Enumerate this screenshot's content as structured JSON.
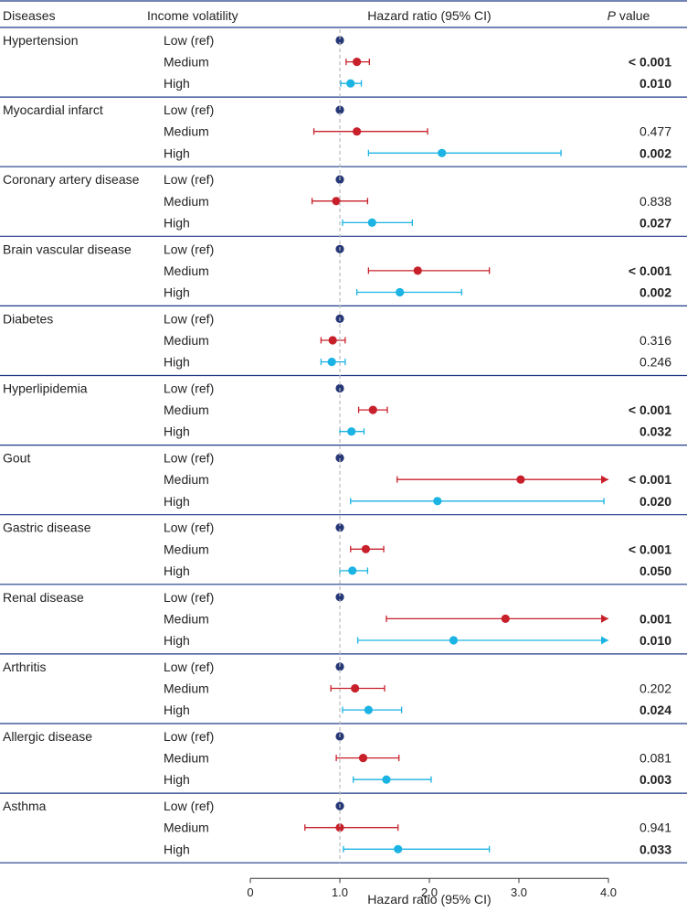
{
  "chart_data": {
    "type": "scatter",
    "subtype": "forest-plot",
    "title": "",
    "columns": {
      "disease": "Diseases",
      "group": "Income volatility",
      "hr": "Hazard ratio (95% CI)",
      "p_italic": "P",
      "p_rest": " value"
    },
    "xlabel": "Hazard ratio (95% CI)",
    "xlim": [
      0,
      4
    ],
    "xticks": [
      "0",
      "1.0",
      "2.0",
      "3.0",
      "4.0"
    ],
    "xtick_values": [
      0,
      1,
      2,
      3,
      4
    ],
    "reference_line": 1.0,
    "group_labels": [
      "Low (ref)",
      "Medium",
      "High"
    ],
    "colors": {
      "low": "#253777",
      "medium": "#c8202a",
      "high": "#1ab3e3",
      "rule": "#1f3a8a",
      "refline": "#bbbbbb"
    },
    "diseases": [
      {
        "name": "Hypertension",
        "rows": [
          {
            "hr": 1.0
          },
          {
            "hr": 1.19,
            "lo": 1.07,
            "hi": 1.33,
            "p": "< 0.001",
            "bold": true
          },
          {
            "hr": 1.12,
            "lo": 1.01,
            "hi": 1.24,
            "p": "0.010",
            "bold": true
          }
        ]
      },
      {
        "name": "Myocardial infarct",
        "rows": [
          {
            "hr": 1.0
          },
          {
            "hr": 1.19,
            "lo": 0.71,
            "hi": 1.98,
            "p": "0.477",
            "bold": false
          },
          {
            "hr": 2.14,
            "lo": 1.32,
            "hi": 3.47,
            "p": "0.002",
            "bold": true
          }
        ]
      },
      {
        "name": "Coronary artery disease",
        "rows": [
          {
            "hr": 1.0
          },
          {
            "hr": 0.96,
            "lo": 0.69,
            "hi": 1.31,
            "p": "0.838",
            "bold": false
          },
          {
            "hr": 1.36,
            "lo": 1.03,
            "hi": 1.81,
            "p": "0.027",
            "bold": true
          }
        ]
      },
      {
        "name": "Brain vascular disease",
        "rows": [
          {
            "hr": 1.0
          },
          {
            "hr": 1.87,
            "lo": 1.32,
            "hi": 2.67,
            "p": "< 0.001",
            "bold": true
          },
          {
            "hr": 1.67,
            "lo": 1.19,
            "hi": 2.36,
            "p": "0.002",
            "bold": true
          }
        ]
      },
      {
        "name": "Diabetes",
        "rows": [
          {
            "hr": 1.0
          },
          {
            "hr": 0.92,
            "lo": 0.79,
            "hi": 1.06,
            "p": "0.316",
            "bold": false
          },
          {
            "hr": 0.91,
            "lo": 0.79,
            "hi": 1.06,
            "p": "0.246",
            "bold": false
          }
        ]
      },
      {
        "name": "Hyperlipidemia",
        "rows": [
          {
            "hr": 1.0
          },
          {
            "hr": 1.37,
            "lo": 1.21,
            "hi": 1.53,
            "p": "< 0.001",
            "bold": true
          },
          {
            "hr": 1.13,
            "lo": 1.0,
            "hi": 1.27,
            "p": "0.032",
            "bold": true
          }
        ]
      },
      {
        "name": "Gout",
        "rows": [
          {
            "hr": 1.0
          },
          {
            "hr": 3.02,
            "lo": 1.64,
            "hi": 4.0,
            "p": "< 0.001",
            "bold": true,
            "arrow": true
          },
          {
            "hr": 2.09,
            "lo": 1.12,
            "hi": 3.95,
            "p": "0.020",
            "bold": true
          }
        ]
      },
      {
        "name": "Gastric disease",
        "rows": [
          {
            "hr": 1.0
          },
          {
            "hr": 1.29,
            "lo": 1.12,
            "hi": 1.49,
            "p": "< 0.001",
            "bold": true
          },
          {
            "hr": 1.14,
            "lo": 1.0,
            "hi": 1.31,
            "p": "0.050",
            "bold": true
          }
        ]
      },
      {
        "name": "Renal disease",
        "rows": [
          {
            "hr": 1.0
          },
          {
            "hr": 2.85,
            "lo": 1.52,
            "hi": 4.0,
            "p": "0.001",
            "bold": true,
            "arrow": true
          },
          {
            "hr": 2.27,
            "lo": 1.2,
            "hi": 4.0,
            "p": "0.010",
            "bold": true,
            "arrow": true
          }
        ]
      },
      {
        "name": "Arthritis",
        "rows": [
          {
            "hr": 1.0
          },
          {
            "hr": 1.17,
            "lo": 0.9,
            "hi": 1.5,
            "p": "0.202",
            "bold": false
          },
          {
            "hr": 1.32,
            "lo": 1.03,
            "hi": 1.69,
            "p": "0.024",
            "bold": true
          }
        ]
      },
      {
        "name": "Allergic disease",
        "rows": [
          {
            "hr": 1.0
          },
          {
            "hr": 1.26,
            "lo": 0.96,
            "hi": 1.66,
            "p": "0.081",
            "bold": false
          },
          {
            "hr": 1.52,
            "lo": 1.15,
            "hi": 2.02,
            "p": "0.003",
            "bold": true
          }
        ]
      },
      {
        "name": "Asthma",
        "rows": [
          {
            "hr": 1.0
          },
          {
            "hr": 1.0,
            "lo": 0.61,
            "hi": 1.65,
            "p": "0.941",
            "bold": false
          },
          {
            "hr": 1.65,
            "lo": 1.04,
            "hi": 2.67,
            "p": "0.033",
            "bold": true
          }
        ]
      }
    ]
  }
}
